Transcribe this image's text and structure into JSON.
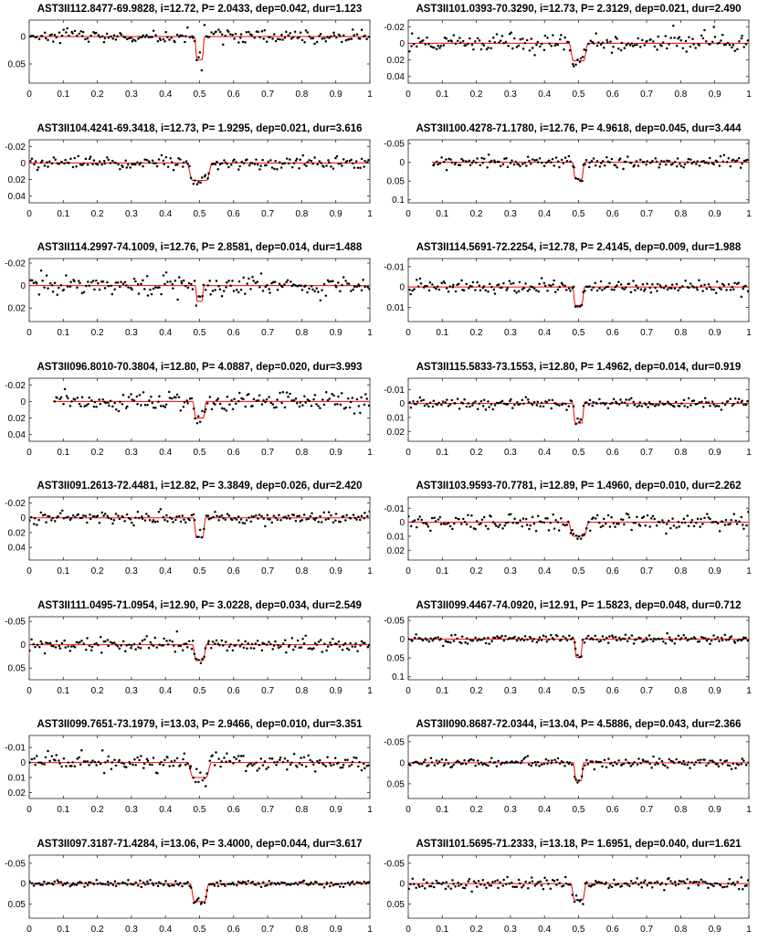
{
  "figure": {
    "panels": [
      {
        "title": "AST3II112.8477-69.9828, i=12.72, P= 2.0433, dep=0.042, dur=1.123"
      },
      {
        "title": "AST3II101.0393-70.3290, i=12.73, P= 2.3129, dep=0.021, dur=2.490"
      },
      {
        "title": "AST3II104.4241-69.3418, i=12.73, P= 1.9295, dep=0.021, dur=3.616"
      },
      {
        "title": "AST3II100.4278-71.1780, i=12.76, P= 4.9618, dep=0.045, dur=3.444"
      },
      {
        "title": "AST3II114.2997-74.1009, i=12.76, P= 2.8581, dep=0.014, dur=1.488"
      },
      {
        "title": "AST3II114.5691-72.2254, i=12.78, P= 2.4145, dep=0.009, dur=1.988"
      },
      {
        "title": "AST3II096.8010-70.3804, i=12.80, P= 4.0887, dep=0.020, dur=3.993"
      },
      {
        "title": "AST3II115.5833-73.1553, i=12.80, P= 1.4962, dep=0.014, dur=0.919"
      },
      {
        "title": "AST3II091.2613-72.4481, i=12.82, P= 3.3849, dep=0.026, dur=2.420"
      },
      {
        "title": "AST3II103.9593-70.7781, i=12.89, P= 1.4960, dep=0.010, dur=2.262"
      },
      {
        "title": "AST3II111.0495-71.0954, i=12.90, P= 3.0228, dep=0.034, dur=2.549"
      },
      {
        "title": "AST3II099.4467-74.0920, i=12.91, P= 1.5823, dep=0.048, dur=0.712"
      },
      {
        "title": "AST3II099.7651-73.1979, i=13.03, P= 2.9466, dep=0.010, dur=3.351"
      },
      {
        "title": "AST3II090.8687-72.0344, i=13.04, P= 4.5886, dep=0.043, dur=2.366"
      },
      {
        "title": "AST3II097.3187-71.4284, i=13.06, P= 3.4000, dep=0.044, dur=3.617"
      },
      {
        "title": "AST3II101.5695-71.2333, i=13.18, P= 1.6951, dep=0.040, dur=1.621"
      }
    ]
  },
  "chart_data": [
    {
      "type": "scatter",
      "title": "AST3II112.8477-69.9828, i=12.72, P= 2.0433, dep=0.042, dur=1.123",
      "xlim": [
        0,
        1
      ],
      "ylim": [
        0.085,
        -0.03
      ],
      "y_inverted": true,
      "xticks": [
        0,
        0.1,
        0.2,
        0.3,
        0.4,
        0.5,
        0.6,
        0.7,
        0.8,
        0.9,
        1
      ],
      "yticks": [
        {
          "v": 0,
          "t": "0"
        },
        {
          "v": 0.05,
          "t": "0.05"
        }
      ],
      "transit_center": 0.5,
      "depth": 0.042,
      "duration_phase": 0.029,
      "noise": 0.006,
      "x_start": 0,
      "model_color": "#ff0000",
      "point_color": "#000000"
    },
    {
      "type": "scatter",
      "title": "AST3II101.0393-70.3290, i=12.73, P= 2.3129, dep=0.021, dur=2.490",
      "xlim": [
        0,
        1
      ],
      "ylim": [
        0.048,
        -0.028
      ],
      "y_inverted": true,
      "xticks": [
        0,
        0.1,
        0.2,
        0.3,
        0.4,
        0.5,
        0.6,
        0.7,
        0.8,
        0.9,
        1
      ],
      "yticks": [
        {
          "v": -0.02,
          "t": "-0.02"
        },
        {
          "v": 0,
          "t": "0"
        },
        {
          "v": 0.02,
          "t": "0.02"
        },
        {
          "v": 0.04,
          "t": "0.04"
        }
      ],
      "transit_center": 0.5,
      "depth": 0.021,
      "duration_phase": 0.055,
      "noise": 0.006,
      "x_start": 0,
      "model_color": "#ff0000",
      "point_color": "#000000"
    },
    {
      "type": "scatter",
      "title": "AST3II104.4241-69.3418, i=12.73, P= 1.9295, dep=0.021, dur=3.616",
      "xlim": [
        0,
        1
      ],
      "ylim": [
        0.048,
        -0.028
      ],
      "y_inverted": true,
      "xticks": [
        0,
        0.1,
        0.2,
        0.3,
        0.4,
        0.5,
        0.6,
        0.7,
        0.8,
        0.9,
        1
      ],
      "yticks": [
        {
          "v": -0.02,
          "t": "-0.02"
        },
        {
          "v": 0,
          "t": "0"
        },
        {
          "v": 0.02,
          "t": "0.02"
        },
        {
          "v": 0.04,
          "t": "0.04"
        }
      ],
      "transit_center": 0.5,
      "depth": 0.021,
      "duration_phase": 0.075,
      "noise": 0.004,
      "x_start": 0,
      "model_color": "#ff0000",
      "point_color": "#000000"
    },
    {
      "type": "scatter",
      "title": "AST3II100.4278-71.1780, i=12.76, P= 4.9618, dep=0.045, dur=3.444",
      "xlim": [
        0,
        1
      ],
      "ylim": [
        0.108,
        -0.06
      ],
      "y_inverted": true,
      "xticks": [
        0,
        0.1,
        0.2,
        0.3,
        0.4,
        0.5,
        0.6,
        0.7,
        0.8,
        0.9,
        1
      ],
      "yticks": [
        {
          "v": -0.05,
          "t": "-0.05"
        },
        {
          "v": 0,
          "t": "0"
        },
        {
          "v": 0.05,
          "t": "0.05"
        },
        {
          "v": 0.1,
          "t": "0.1"
        }
      ],
      "transit_center": 0.5,
      "depth": 0.045,
      "duration_phase": 0.035,
      "noise": 0.008,
      "x_start": 0.07,
      "model_color": "#ff0000",
      "point_color": "#000000"
    },
    {
      "type": "scatter",
      "title": "AST3II114.2997-74.1009, i=12.76, P= 2.8581, dep=0.014, dur=1.488",
      "xlim": [
        0,
        1
      ],
      "ylim": [
        0.032,
        -0.024
      ],
      "y_inverted": true,
      "xticks": [
        0,
        0.1,
        0.2,
        0.3,
        0.4,
        0.5,
        0.6,
        0.7,
        0.8,
        0.9,
        1
      ],
      "yticks": [
        {
          "v": -0.02,
          "t": "-0.02"
        },
        {
          "v": 0,
          "t": "0"
        },
        {
          "v": 0.02,
          "t": "0.02"
        }
      ],
      "transit_center": 0.5,
      "depth": 0.014,
      "duration_phase": 0.025,
      "noise": 0.004,
      "x_start": 0,
      "model_color": "#ff0000",
      "point_color": "#000000"
    },
    {
      "type": "scatter",
      "title": "AST3II114.5691-72.2254, i=12.78, P= 2.4145, dep=0.009, dur=1.988",
      "xlim": [
        0,
        1
      ],
      "ylim": [
        0.017,
        -0.014
      ],
      "y_inverted": true,
      "xticks": [
        0,
        0.1,
        0.2,
        0.3,
        0.4,
        0.5,
        0.6,
        0.7,
        0.8,
        0.9,
        1
      ],
      "yticks": [
        {
          "v": -0.01,
          "t": "-0.01"
        },
        {
          "v": 0,
          "t": "0"
        },
        {
          "v": 0.01,
          "t": "0.01"
        }
      ],
      "transit_center": 0.5,
      "depth": 0.009,
      "duration_phase": 0.035,
      "noise": 0.0015,
      "x_start": 0,
      "model_color": "#ff0000",
      "point_color": "#000000"
    },
    {
      "type": "scatter",
      "title": "AST3II096.8010-70.3804, i=12.80, P= 4.0887, dep=0.020, dur=3.993",
      "xlim": [
        0,
        1
      ],
      "ylim": [
        0.048,
        -0.028
      ],
      "y_inverted": true,
      "xticks": [
        0,
        0.1,
        0.2,
        0.3,
        0.4,
        0.5,
        0.6,
        0.7,
        0.8,
        0.9,
        1
      ],
      "yticks": [
        {
          "v": -0.02,
          "t": "-0.02"
        },
        {
          "v": 0,
          "t": "0"
        },
        {
          "v": 0.02,
          "t": "0.02"
        },
        {
          "v": 0.04,
          "t": "0.04"
        }
      ],
      "transit_center": 0.5,
      "depth": 0.02,
      "duration_phase": 0.04,
      "noise": 0.006,
      "x_start": 0.07,
      "model_color": "#ff0000",
      "point_color": "#000000"
    },
    {
      "type": "scatter",
      "title": "AST3II115.5833-73.1553, i=12.80, P= 1.4962, dep=0.014, dur=0.919",
      "xlim": [
        0,
        1
      ],
      "ylim": [
        0.027,
        -0.018
      ],
      "y_inverted": true,
      "xticks": [
        0,
        0.1,
        0.2,
        0.3,
        0.4,
        0.5,
        0.6,
        0.7,
        0.8,
        0.9,
        1
      ],
      "yticks": [
        {
          "v": -0.01,
          "t": "-0.01"
        },
        {
          "v": 0,
          "t": "0"
        },
        {
          "v": 0.01,
          "t": "0.01"
        },
        {
          "v": 0.02,
          "t": "0.02"
        }
      ],
      "transit_center": 0.5,
      "depth": 0.014,
      "duration_phase": 0.035,
      "noise": 0.002,
      "x_start": 0,
      "model_color": "#ff0000",
      "point_color": "#000000"
    },
    {
      "type": "scatter",
      "title": "AST3II091.2613-72.4481, i=12.82, P= 3.3849, dep=0.026, dur=2.420",
      "xlim": [
        0,
        1
      ],
      "ylim": [
        0.057,
        -0.028
      ],
      "y_inverted": true,
      "xticks": [
        0,
        0.1,
        0.2,
        0.3,
        0.4,
        0.5,
        0.6,
        0.7,
        0.8,
        0.9,
        1
      ],
      "yticks": [
        {
          "v": -0.02,
          "t": "-0.02"
        },
        {
          "v": 0,
          "t": "0"
        },
        {
          "v": 0.02,
          "t": "0.02"
        },
        {
          "v": 0.04,
          "t": "0.04"
        }
      ],
      "transit_center": 0.5,
      "depth": 0.026,
      "duration_phase": 0.035,
      "noise": 0.004,
      "x_start": 0,
      "model_color": "#ff0000",
      "point_color": "#000000"
    },
    {
      "type": "scatter",
      "title": "AST3II103.9593-70.7781, i=12.89, P= 1.4960, dep=0.010, dur=2.262",
      "xlim": [
        0,
        1
      ],
      "ylim": [
        0.027,
        -0.018
      ],
      "y_inverted": true,
      "xticks": [
        0,
        0.1,
        0.2,
        0.3,
        0.4,
        0.5,
        0.6,
        0.7,
        0.8,
        0.9,
        1
      ],
      "yticks": [
        {
          "v": -0.01,
          "t": "-0.01"
        },
        {
          "v": 0,
          "t": "0"
        },
        {
          "v": 0.01,
          "t": "0.01"
        },
        {
          "v": 0.02,
          "t": "0.02"
        }
      ],
      "transit_center": 0.5,
      "depth": 0.01,
      "duration_phase": 0.06,
      "noise": 0.003,
      "x_start": 0,
      "model_color": "#ff0000",
      "point_color": "#000000"
    },
    {
      "type": "scatter",
      "title": "AST3II111.0495-71.0954, i=12.90, P= 3.0228, dep=0.034, dur=2.549",
      "xlim": [
        0,
        1
      ],
      "ylim": [
        0.075,
        -0.06
      ],
      "y_inverted": true,
      "xticks": [
        0,
        0.1,
        0.2,
        0.3,
        0.4,
        0.5,
        0.6,
        0.7,
        0.8,
        0.9,
        1
      ],
      "yticks": [
        {
          "v": -0.05,
          "t": "-0.05"
        },
        {
          "v": 0,
          "t": "0"
        },
        {
          "v": 0.05,
          "t": "0.05"
        }
      ],
      "transit_center": 0.5,
      "depth": 0.034,
      "duration_phase": 0.04,
      "noise": 0.008,
      "x_start": 0,
      "model_color": "#ff0000",
      "point_color": "#000000"
    },
    {
      "type": "scatter",
      "title": "AST3II099.4467-74.0920, i=12.91, P= 1.5823, dep=0.048, dur=0.712",
      "xlim": [
        0,
        1
      ],
      "ylim": [
        0.108,
        -0.06
      ],
      "y_inverted": true,
      "xticks": [
        0,
        0.1,
        0.2,
        0.3,
        0.4,
        0.5,
        0.6,
        0.7,
        0.8,
        0.9,
        1
      ],
      "yticks": [
        {
          "v": -0.05,
          "t": "-0.05"
        },
        {
          "v": 0,
          "t": "0"
        },
        {
          "v": 0.05,
          "t": "0.05"
        },
        {
          "v": 0.1,
          "t": "0.1"
        }
      ],
      "transit_center": 0.5,
      "depth": 0.048,
      "duration_phase": 0.025,
      "noise": 0.006,
      "x_start": 0,
      "model_color": "#ff0000",
      "point_color": "#000000"
    },
    {
      "type": "scatter",
      "title": "AST3II099.7651-73.1979, i=13.03, P= 2.9466, dep=0.010, dur=3.351",
      "xlim": [
        0,
        1
      ],
      "ylim": [
        0.024,
        -0.018
      ],
      "y_inverted": true,
      "xticks": [
        0,
        0.1,
        0.2,
        0.3,
        0.4,
        0.5,
        0.6,
        0.7,
        0.8,
        0.9,
        1
      ],
      "yticks": [
        {
          "v": -0.01,
          "t": "-0.01"
        },
        {
          "v": 0,
          "t": "0"
        },
        {
          "v": 0.01,
          "t": "0.01"
        },
        {
          "v": 0.02,
          "t": "0.02"
        }
      ],
      "transit_center": 0.5,
      "depth": 0.01,
      "duration_phase": 0.07,
      "noise": 0.003,
      "x_start": 0,
      "model_color": "#ff0000",
      "point_color": "#000000"
    },
    {
      "type": "scatter",
      "title": "AST3II090.8687-72.0344, i=13.04, P= 4.5886, dep=0.043, dur=2.366",
      "xlim": [
        0,
        1
      ],
      "ylim": [
        0.085,
        -0.065
      ],
      "y_inverted": true,
      "xticks": [
        0,
        0.1,
        0.2,
        0.3,
        0.4,
        0.5,
        0.6,
        0.7,
        0.8,
        0.9,
        1
      ],
      "yticks": [
        {
          "v": -0.05,
          "t": "-0.05"
        },
        {
          "v": 0,
          "t": "0"
        },
        {
          "v": 0.05,
          "t": "0.05"
        }
      ],
      "transit_center": 0.5,
      "depth": 0.043,
      "duration_phase": 0.03,
      "noise": 0.006,
      "x_start": 0,
      "model_color": "#ff0000",
      "point_color": "#000000"
    },
    {
      "type": "scatter",
      "title": "AST3II097.3187-71.4284, i=13.06, P= 3.4000, dep=0.044, dur=3.617",
      "xlim": [
        0,
        1
      ],
      "ylim": [
        0.085,
        -0.07
      ],
      "y_inverted": true,
      "xticks": [
        0,
        0.1,
        0.2,
        0.3,
        0.4,
        0.5,
        0.6,
        0.7,
        0.8,
        0.9,
        1
      ],
      "yticks": [
        {
          "v": -0.05,
          "t": "-0.05"
        },
        {
          "v": 0,
          "t": "0"
        },
        {
          "v": 0.05,
          "t": "0.05"
        }
      ],
      "transit_center": 0.5,
      "depth": 0.044,
      "duration_phase": 0.055,
      "noise": 0.004,
      "x_start": 0,
      "model_color": "#ff0000",
      "point_color": "#000000"
    },
    {
      "type": "scatter",
      "title": "AST3II101.5695-71.2333, i=13.18, P= 1.6951, dep=0.040, dur=1.621",
      "xlim": [
        0,
        1
      ],
      "ylim": [
        0.085,
        -0.07
      ],
      "y_inverted": true,
      "xticks": [
        0,
        0.1,
        0.2,
        0.3,
        0.4,
        0.5,
        0.6,
        0.7,
        0.8,
        0.9,
        1
      ],
      "yticks": [
        {
          "v": -0.05,
          "t": "-0.05"
        },
        {
          "v": 0,
          "t": "0"
        },
        {
          "v": 0.05,
          "t": "0.05"
        }
      ],
      "transit_center": 0.5,
      "depth": 0.04,
      "duration_phase": 0.045,
      "noise": 0.007,
      "x_start": 0,
      "model_color": "#ff0000",
      "point_color": "#000000"
    }
  ]
}
